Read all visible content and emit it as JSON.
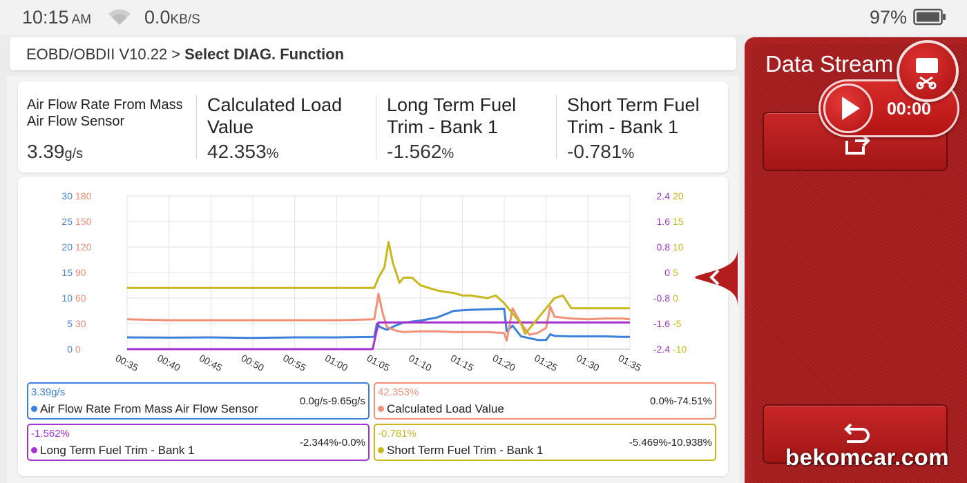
{
  "status_bar": {
    "time": "10:15",
    "ampm": "AM",
    "speed": "0.0",
    "speed_unit": "KB/S",
    "battery": "97%"
  },
  "breadcrumb": {
    "path": "EOBD/OBDII V10.22",
    "separator": ">",
    "current": "Select DIAG. Function"
  },
  "values": [
    {
      "label": "Air Flow Rate From Mass Air Flow Sensor",
      "value": "3.39",
      "unit": "g/s"
    },
    {
      "label": "Calculated Load Value",
      "value": "42.353",
      "unit": "%"
    },
    {
      "label": "Long Term Fuel Trim - Bank 1",
      "value": "-1.562",
      "unit": "%"
    },
    {
      "label": "Short Term Fuel Trim - Bank 1",
      "value": "-0.781",
      "unit": "%"
    }
  ],
  "chart_data": {
    "type": "line",
    "x_ticks": [
      "00:35",
      "00:40",
      "00:45",
      "00:50",
      "00:55",
      "01:00",
      "01:05",
      "01:10",
      "01:15",
      "01:20",
      "01:25",
      "01:30",
      "01:35"
    ],
    "axes": {
      "left_outer": {
        "ticks": [
          "30",
          "25",
          "20",
          "15",
          "10",
          "5",
          "0"
        ],
        "color": "#4a86d8",
        "range": [
          0,
          30
        ]
      },
      "left_inner": {
        "ticks": [
          "180",
          "150",
          "120",
          "90",
          "60",
          "30",
          "0"
        ],
        "color": "#f08a72",
        "range": [
          0,
          180
        ]
      },
      "right_inner": {
        "ticks": [
          "2.4",
          "1.6",
          "0.8",
          "0",
          "-0.8",
          "-1.6",
          "-2.4"
        ],
        "color": "#a433cc",
        "range": [
          -2.4,
          2.4
        ]
      },
      "right_outer": {
        "ticks": [
          "20",
          "15",
          "10",
          "5",
          "0",
          "-5",
          "-10"
        ],
        "color": "#c9b81a",
        "range": [
          -10,
          20
        ]
      }
    },
    "grid": true,
    "series": [
      {
        "name": "Air Flow Rate From Mass Air Flow Sensor",
        "color": "#3a80dc",
        "axis": "left_outer",
        "points": [
          [
            35,
            2.3
          ],
          [
            40,
            2.25
          ],
          [
            45,
            2.3
          ],
          [
            50,
            2.2
          ],
          [
            55,
            2.3
          ],
          [
            60,
            2.3
          ],
          [
            64.5,
            2.4
          ],
          [
            64.8,
            5.0
          ],
          [
            65.2,
            4.3
          ],
          [
            66,
            3.8
          ],
          [
            67,
            4.6
          ],
          [
            68,
            5.2
          ],
          [
            70,
            5.6
          ],
          [
            72,
            6.2
          ],
          [
            74,
            7.5
          ],
          [
            76,
            7.7
          ],
          [
            78,
            7.8
          ],
          [
            80,
            7.9
          ],
          [
            80.3,
            3.5
          ],
          [
            81,
            4.6
          ],
          [
            82,
            2.5
          ],
          [
            84,
            1.8
          ],
          [
            85,
            1.8
          ],
          [
            85.5,
            2.9
          ],
          [
            86,
            2.6
          ],
          [
            88,
            2.5
          ],
          [
            90,
            2.5
          ],
          [
            92,
            2.5
          ],
          [
            94,
            2.4
          ],
          [
            95,
            2.4
          ]
        ]
      },
      {
        "name": "Calculated Load Value",
        "color": "#f39078",
        "axis": "left_inner",
        "points": [
          [
            35,
            35
          ],
          [
            40,
            34
          ],
          [
            45,
            34
          ],
          [
            50,
            34
          ],
          [
            55,
            34
          ],
          [
            60,
            34
          ],
          [
            64.5,
            35
          ],
          [
            65,
            65
          ],
          [
            65.5,
            42
          ],
          [
            66,
            26
          ],
          [
            67,
            22
          ],
          [
            68,
            20
          ],
          [
            70,
            21
          ],
          [
            72,
            21
          ],
          [
            74,
            20
          ],
          [
            76,
            20
          ],
          [
            78,
            20
          ],
          [
            80,
            19
          ],
          [
            80.3,
            10
          ],
          [
            81,
            48
          ],
          [
            82,
            30
          ],
          [
            83,
            17
          ],
          [
            84,
            19
          ],
          [
            85,
            25
          ],
          [
            85.5,
            50
          ],
          [
            86,
            38
          ],
          [
            88,
            36
          ],
          [
            90,
            35
          ],
          [
            92,
            36
          ],
          [
            94,
            36
          ],
          [
            95,
            35
          ]
        ]
      },
      {
        "name": "Long Term Fuel Trim - Bank 1",
        "color": "#a632d0",
        "axis": "right_inner",
        "points": [
          [
            35,
            -2.4
          ],
          [
            40,
            -2.4
          ],
          [
            45,
            -2.4
          ],
          [
            50,
            -2.4
          ],
          [
            55,
            -2.4
          ],
          [
            60,
            -2.4
          ],
          [
            64.3,
            -2.4
          ],
          [
            65,
            -1.56
          ],
          [
            70,
            -1.56
          ],
          [
            75,
            -1.56
          ],
          [
            80,
            -1.56
          ],
          [
            85,
            -1.56
          ],
          [
            90,
            -1.56
          ],
          [
            95,
            -1.56
          ]
        ]
      },
      {
        "name": "Short Term Fuel Trim - Bank 1",
        "color": "#c8b81c",
        "axis": "right_outer",
        "points": [
          [
            35,
            2
          ],
          [
            40,
            2
          ],
          [
            45,
            2
          ],
          [
            50,
            2
          ],
          [
            55,
            2
          ],
          [
            60,
            2
          ],
          [
            64.5,
            2
          ],
          [
            65,
            4
          ],
          [
            65.7,
            6
          ],
          [
            66.2,
            11
          ],
          [
            66.7,
            7
          ],
          [
            67.5,
            3
          ],
          [
            68,
            4
          ],
          [
            69,
            4
          ],
          [
            70,
            2.5
          ],
          [
            71,
            2
          ],
          [
            72,
            1.5
          ],
          [
            73,
            1.2
          ],
          [
            74,
            1
          ],
          [
            75,
            0.5
          ],
          [
            76,
            0.5
          ],
          [
            78,
            0
          ],
          [
            79,
            0.5
          ],
          [
            80,
            -1
          ],
          [
            81,
            -3
          ],
          [
            82,
            -5
          ],
          [
            82.5,
            -7
          ],
          [
            83,
            -6
          ],
          [
            84,
            -4
          ],
          [
            85,
            -2
          ],
          [
            86,
            0
          ],
          [
            87,
            0.5
          ],
          [
            88,
            -2
          ],
          [
            90,
            -2
          ],
          [
            92,
            -2
          ],
          [
            94,
            -2
          ],
          [
            95,
            -2
          ]
        ]
      }
    ]
  },
  "legend": [
    {
      "value": "3.39g/s",
      "name": "Air Flow Rate From Mass Air Flow Sensor",
      "range": "0.0g/s-9.65g/s",
      "color": "#3a80dc"
    },
    {
      "value": "42.353%",
      "name": "Calculated Load Value",
      "range": "0.0%-74.51%",
      "color": "#f39078"
    },
    {
      "value": "-1.562%",
      "name": "Long Term Fuel Trim - Bank 1",
      "range": "-2.344%-0.0%",
      "color": "#a632d0"
    },
    {
      "value": "-0.781%",
      "name": "Short Term Fuel Trim - Bank 1",
      "range": "-5.469%-10.938%",
      "color": "#c8b81c"
    }
  ],
  "side_panel": {
    "title": "Data Stream",
    "record_time": "00:00"
  },
  "icons": {
    "wifi": "wifi-icon",
    "battery": "battery-icon",
    "export": "export-icon",
    "back": "back-icon",
    "collapse": "chevron-left-icon",
    "play": "play-icon",
    "screenshot": "screenshot-icon"
  },
  "watermark": "bekomcar.com"
}
